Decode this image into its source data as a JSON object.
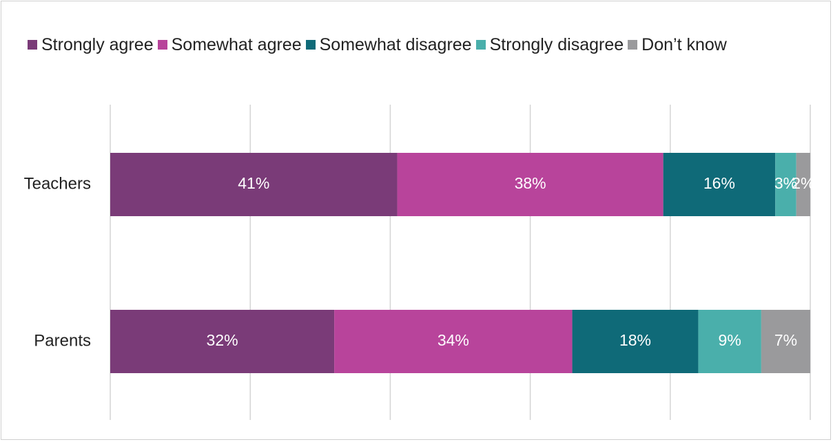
{
  "chart_data": {
    "type": "bar",
    "orientation": "horizontal",
    "stacked": true,
    "categories": [
      "Teachers",
      "Parents"
    ],
    "series": [
      {
        "name": "Strongly agree",
        "color": "#7a3b78",
        "values": [
          41,
          32
        ],
        "labels": [
          "41%",
          "32%"
        ]
      },
      {
        "name": "Somewhat agree",
        "color": "#b8449b",
        "values": [
          38,
          34
        ],
        "labels": [
          "38%",
          "34%"
        ]
      },
      {
        "name": "Somewhat disagree",
        "color": "#0f6a78",
        "values": [
          16,
          18
        ],
        "labels": [
          "16%",
          "18%"
        ]
      },
      {
        "name": "Strongly disagree",
        "color": "#4aafab",
        "values": [
          3,
          9
        ],
        "labels": [
          "3%",
          "9%"
        ]
      },
      {
        "name": "Don’t know",
        "color": "#9a9a9c",
        "values": [
          2,
          7
        ],
        "labels": [
          "2%",
          "7%"
        ]
      }
    ],
    "xlim": [
      0,
      100
    ],
    "grid": true,
    "legend_position": "top"
  }
}
